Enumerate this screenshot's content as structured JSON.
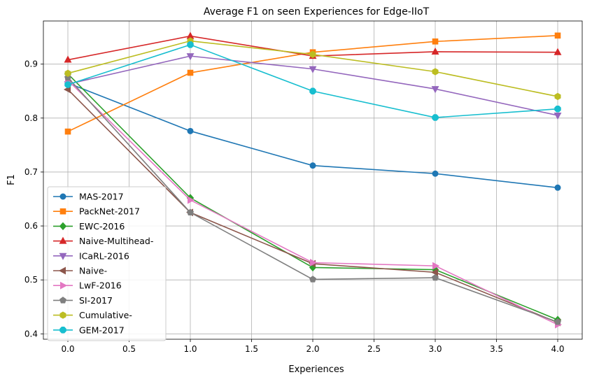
{
  "chart_data": {
    "type": "line",
    "title": "Average F1 on seen Experiences for Edge-IIoT",
    "xlabel": "Experiences",
    "ylabel": "F1",
    "xlim": [
      -0.2,
      4.2
    ],
    "ylim": [
      0.39,
      0.98
    ],
    "grid": true,
    "legend_position": "lower-left",
    "x": [
      0.0,
      1.0,
      2.0,
      3.0,
      4.0
    ],
    "x_ticks": [
      0.0,
      0.5,
      1.0,
      1.5,
      2.0,
      2.5,
      3.0,
      3.5,
      4.0
    ],
    "x_tick_labels": [
      "0.0",
      "0.5",
      "1.0",
      "1.5",
      "2.0",
      "2.5",
      "3.0",
      "3.5",
      "4.0"
    ],
    "y_ticks": [
      0.4,
      0.5,
      0.6,
      0.7,
      0.8,
      0.9
    ],
    "y_tick_labels": [
      "0.4",
      "0.5",
      "0.6",
      "0.7",
      "0.8",
      "0.9"
    ],
    "series": [
      {
        "name": "MAS-2017",
        "color": "#1f77b4",
        "marker": "circle",
        "values": [
          0.865,
          0.776,
          0.712,
          0.697,
          0.671
        ]
      },
      {
        "name": "PackNet-2017",
        "color": "#ff7f0e",
        "marker": "square",
        "values": [
          0.775,
          0.884,
          0.922,
          0.942,
          0.953
        ]
      },
      {
        "name": "EWC-2016",
        "color": "#2ca02c",
        "marker": "diamond",
        "values": [
          0.882,
          0.652,
          0.523,
          0.519,
          0.426
        ]
      },
      {
        "name": "Naive-Multihead-",
        "color": "#d62728",
        "marker": "triangle-up",
        "values": [
          0.908,
          0.952,
          0.915,
          0.923,
          0.922
        ]
      },
      {
        "name": "ICaRL-2016",
        "color": "#9467bd",
        "marker": "triangle-down",
        "values": [
          0.863,
          0.915,
          0.891,
          0.854,
          0.805
        ]
      },
      {
        "name": "Naive-",
        "color": "#8c564b",
        "marker": "triangle-left",
        "values": [
          0.853,
          0.625,
          0.53,
          0.514,
          0.421
        ]
      },
      {
        "name": "LwF-2016",
        "color": "#e377c2",
        "marker": "triangle-right",
        "values": [
          0.87,
          0.648,
          0.532,
          0.526,
          0.417
        ]
      },
      {
        "name": "SI-2017",
        "color": "#7f7f7f",
        "marker": "pentagon",
        "values": [
          0.875,
          0.625,
          0.501,
          0.504,
          0.422
        ]
      },
      {
        "name": "Cumulative-",
        "color": "#bcbd22",
        "marker": "hexagon",
        "values": [
          0.883,
          0.943,
          0.918,
          0.886,
          0.84
        ]
      },
      {
        "name": "GEM-2017",
        "color": "#17becf",
        "marker": "octagon",
        "values": [
          0.862,
          0.936,
          0.85,
          0.801,
          0.817
        ]
      }
    ]
  }
}
